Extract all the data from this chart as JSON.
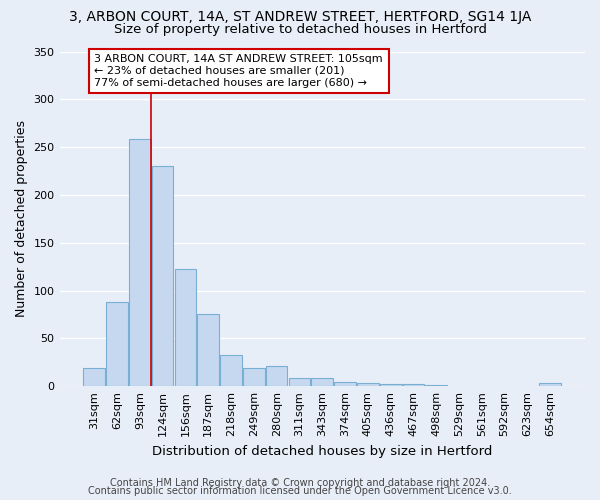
{
  "title": "3, ARBON COURT, 14A, ST ANDREW STREET, HERTFORD, SG14 1JA",
  "subtitle": "Size of property relative to detached houses in Hertford",
  "xlabel": "Distribution of detached houses by size in Hertford",
  "ylabel": "Number of detached properties",
  "categories": [
    "31sqm",
    "62sqm",
    "93sqm",
    "124sqm",
    "156sqm",
    "187sqm",
    "218sqm",
    "249sqm",
    "280sqm",
    "311sqm",
    "343sqm",
    "374sqm",
    "405sqm",
    "436sqm",
    "467sqm",
    "498sqm",
    "529sqm",
    "561sqm",
    "592sqm",
    "623sqm",
    "654sqm"
  ],
  "values": [
    19,
    88,
    258,
    230,
    123,
    75,
    33,
    19,
    21,
    9,
    9,
    4,
    3,
    2,
    2,
    1,
    0,
    0,
    0,
    0,
    3
  ],
  "bar_color": "#c5d8f0",
  "bar_edge_color": "#7aafd4",
  "marker_bar_index": 2,
  "marker_color": "#cc0000",
  "annotation_text": "3 ARBON COURT, 14A ST ANDREW STREET: 105sqm\n← 23% of detached houses are smaller (201)\n77% of semi-detached houses are larger (680) →",
  "annotation_box_color": "#ffffff",
  "annotation_box_edge": "#cc0000",
  "ylim": [
    0,
    350
  ],
  "yticks": [
    0,
    50,
    100,
    150,
    200,
    250,
    300,
    350
  ],
  "footer1": "Contains HM Land Registry data © Crown copyright and database right 2024.",
  "footer2": "Contains public sector information licensed under the Open Government Licence v3.0.",
  "bg_color": "#e8eef8",
  "plot_bg_color": "#e8eef8",
  "grid_color": "#ffffff",
  "title_fontsize": 10,
  "subtitle_fontsize": 9.5,
  "axis_label_fontsize": 9,
  "tick_fontsize": 8,
  "footer_fontsize": 7
}
